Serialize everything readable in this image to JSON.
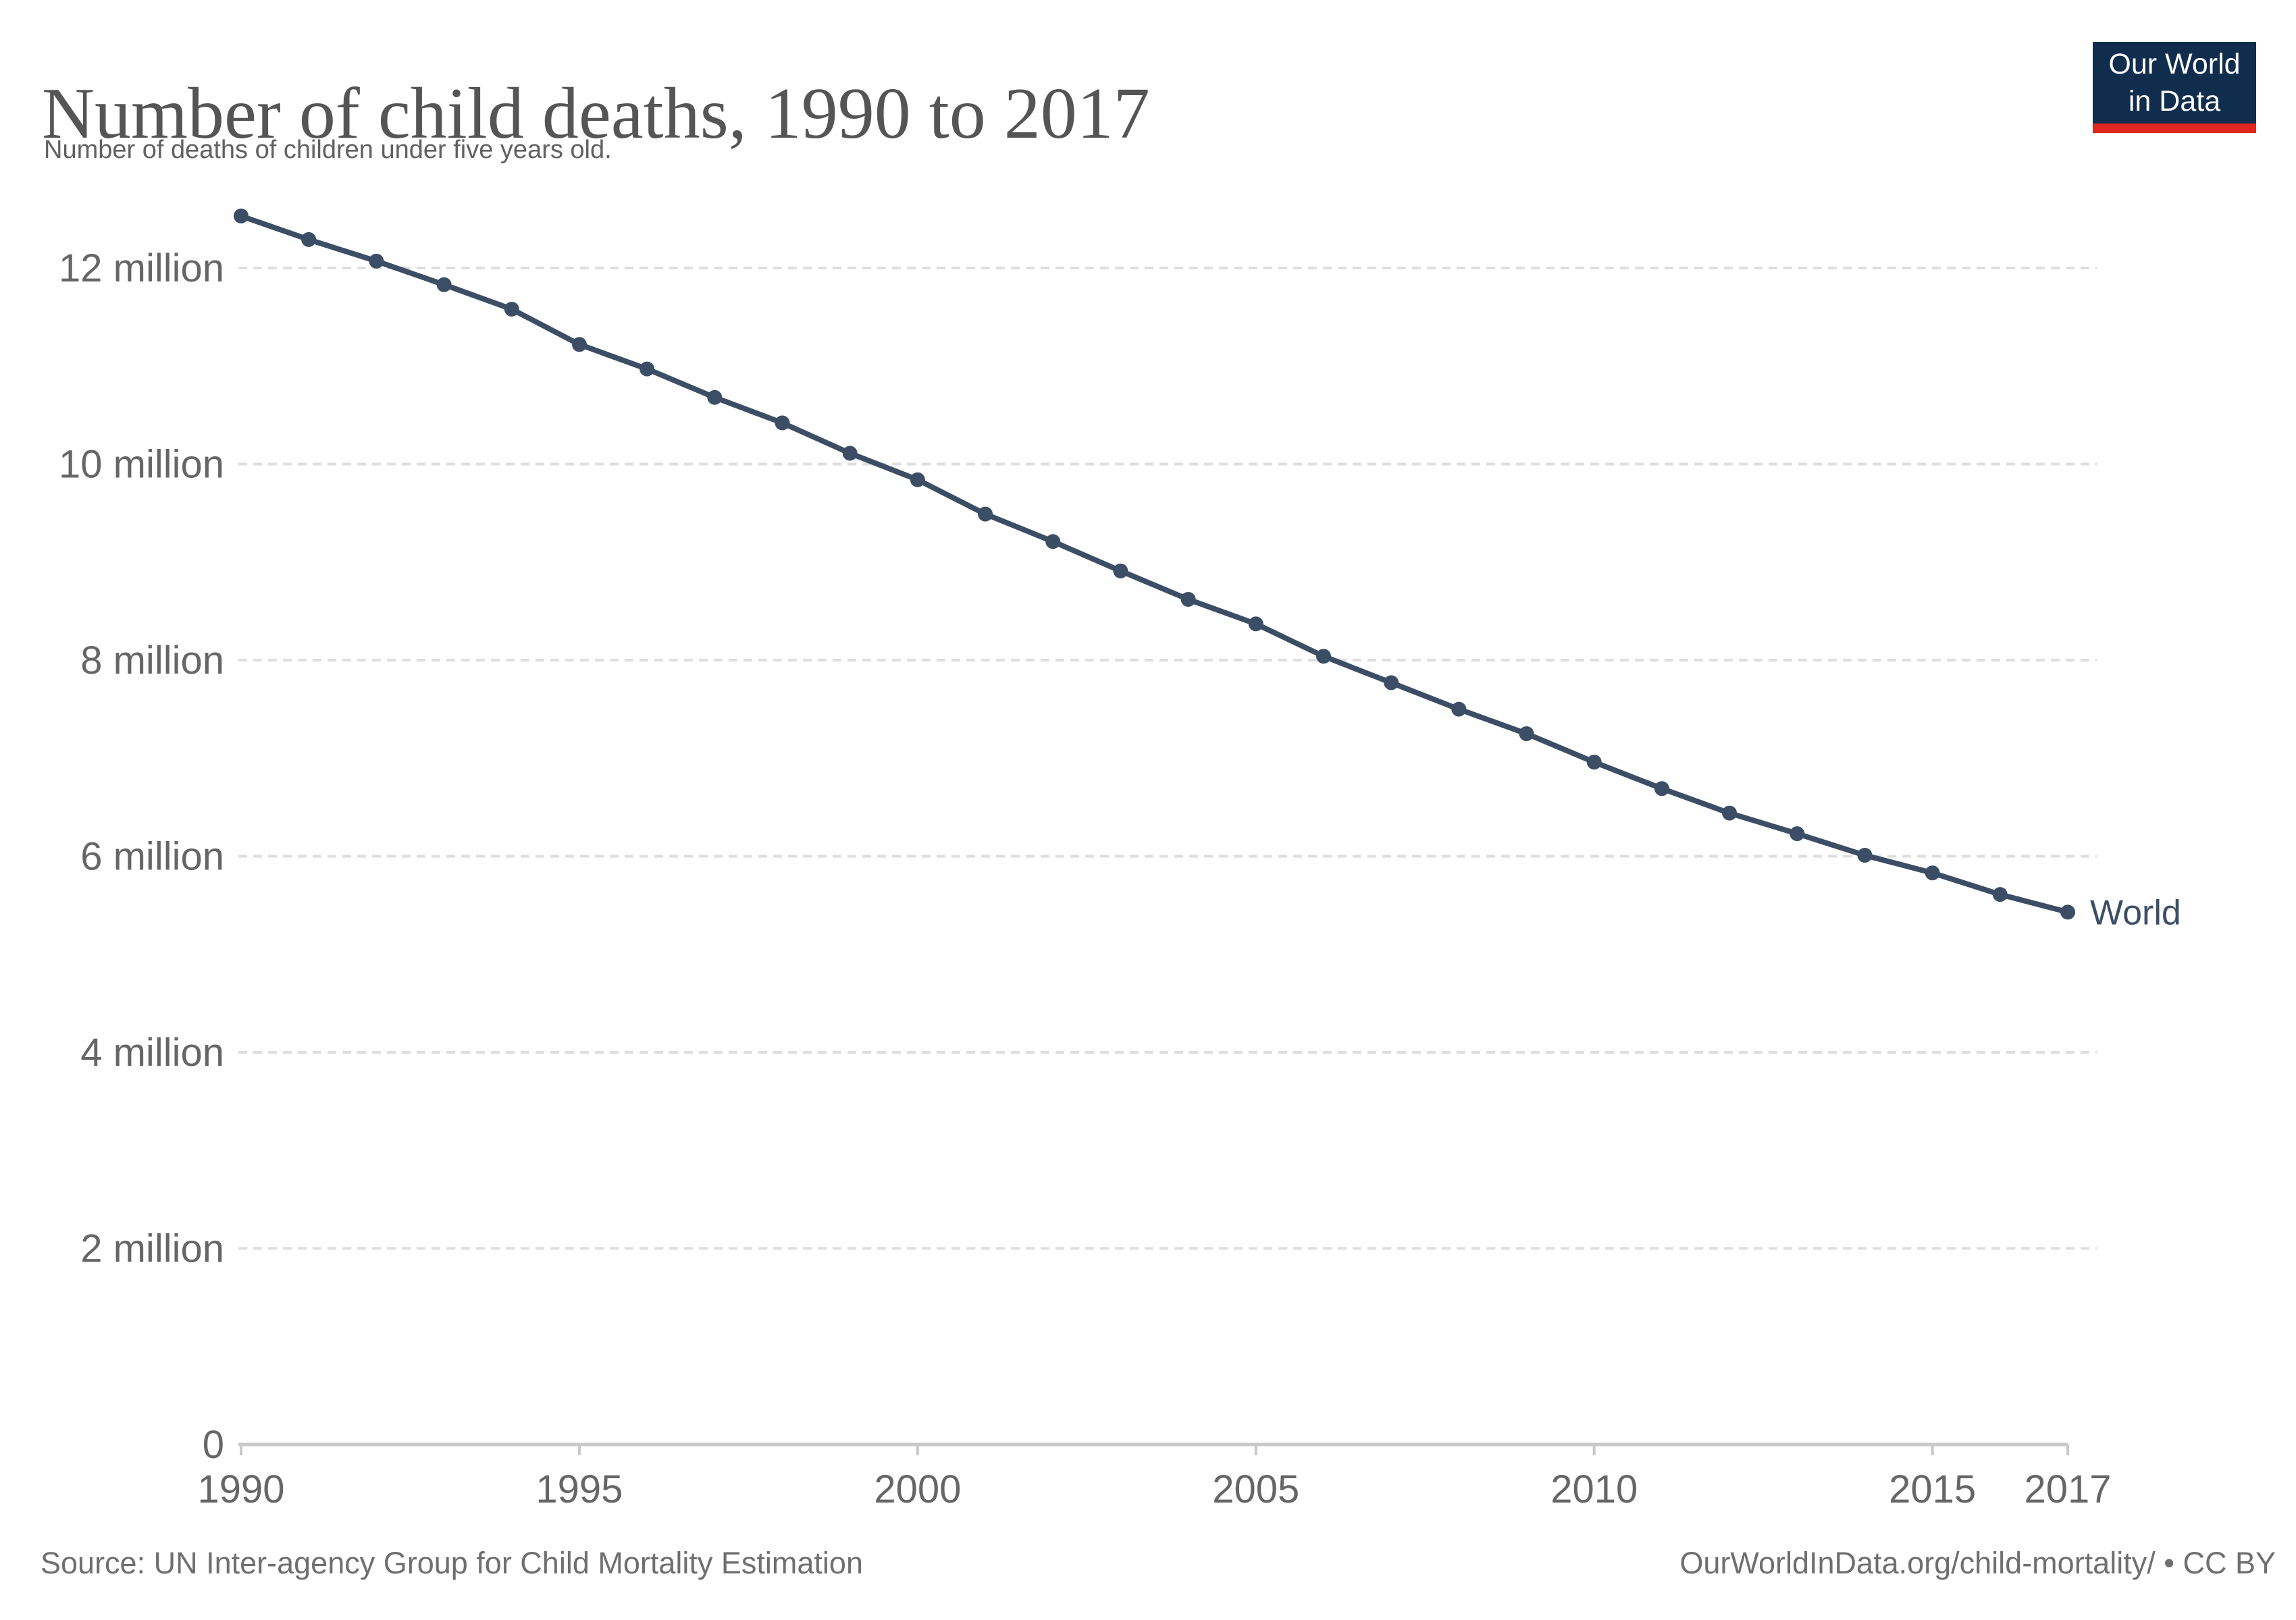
{
  "header": {
    "title": "Number of child deaths, 1990 to 2017",
    "subtitle": "Number of deaths of children under five years old."
  },
  "logo": {
    "line1": "Our World",
    "line2": "in Data",
    "bg_color": "#102d4e",
    "accent_color": "#e0261d"
  },
  "chart_data": {
    "type": "line",
    "title": "Number of child deaths, 1990 to 2017",
    "xlabel": "",
    "ylabel": "",
    "unit": "million",
    "x": [
      1990,
      1991,
      1992,
      1993,
      1994,
      1995,
      1996,
      1997,
      1998,
      1999,
      2000,
      2001,
      2002,
      2003,
      2004,
      2005,
      2006,
      2007,
      2008,
      2009,
      2010,
      2011,
      2012,
      2013,
      2014,
      2015,
      2016,
      2017
    ],
    "series": [
      {
        "name": "World",
        "values": [
          12.53,
          12.29,
          12.07,
          11.83,
          11.58,
          11.22,
          10.97,
          10.68,
          10.42,
          10.11,
          9.84,
          9.49,
          9.21,
          8.91,
          8.62,
          8.37,
          8.04,
          7.77,
          7.5,
          7.25,
          6.96,
          6.69,
          6.44,
          6.23,
          6.01,
          5.83,
          5.61,
          5.43
        ]
      }
    ],
    "ylim": [
      0,
      12.8
    ],
    "xlim": [
      1990,
      2017
    ],
    "grid": "horizontal-dashed",
    "legend_position": "end-of-line",
    "yticks": [
      {
        "value": 0,
        "label": "0"
      },
      {
        "value": 2,
        "label": "2 million"
      },
      {
        "value": 4,
        "label": "4 million"
      },
      {
        "value": 6,
        "label": "6 million"
      },
      {
        "value": 8,
        "label": "8 million"
      },
      {
        "value": 10,
        "label": "10 million"
      },
      {
        "value": 12,
        "label": "12 million"
      }
    ],
    "xticks": [
      {
        "value": 1990,
        "label": "1990"
      },
      {
        "value": 1995,
        "label": "1995"
      },
      {
        "value": 2000,
        "label": "2000"
      },
      {
        "value": 2005,
        "label": "2005"
      },
      {
        "value": 2010,
        "label": "2010"
      },
      {
        "value": 2015,
        "label": "2015"
      },
      {
        "value": 2017,
        "label": "2017"
      }
    ],
    "colors": {
      "line": "#3c4e66",
      "series_label": "#3c4e66",
      "axis_text": "#666666",
      "axis_line": "#c9c9c9",
      "gridline": "#dedede"
    }
  },
  "footer": {
    "source": "Source: UN Inter-agency Group for Child Mortality Estimation",
    "credit": "OurWorldInData.org/child-mortality/ • CC BY"
  }
}
